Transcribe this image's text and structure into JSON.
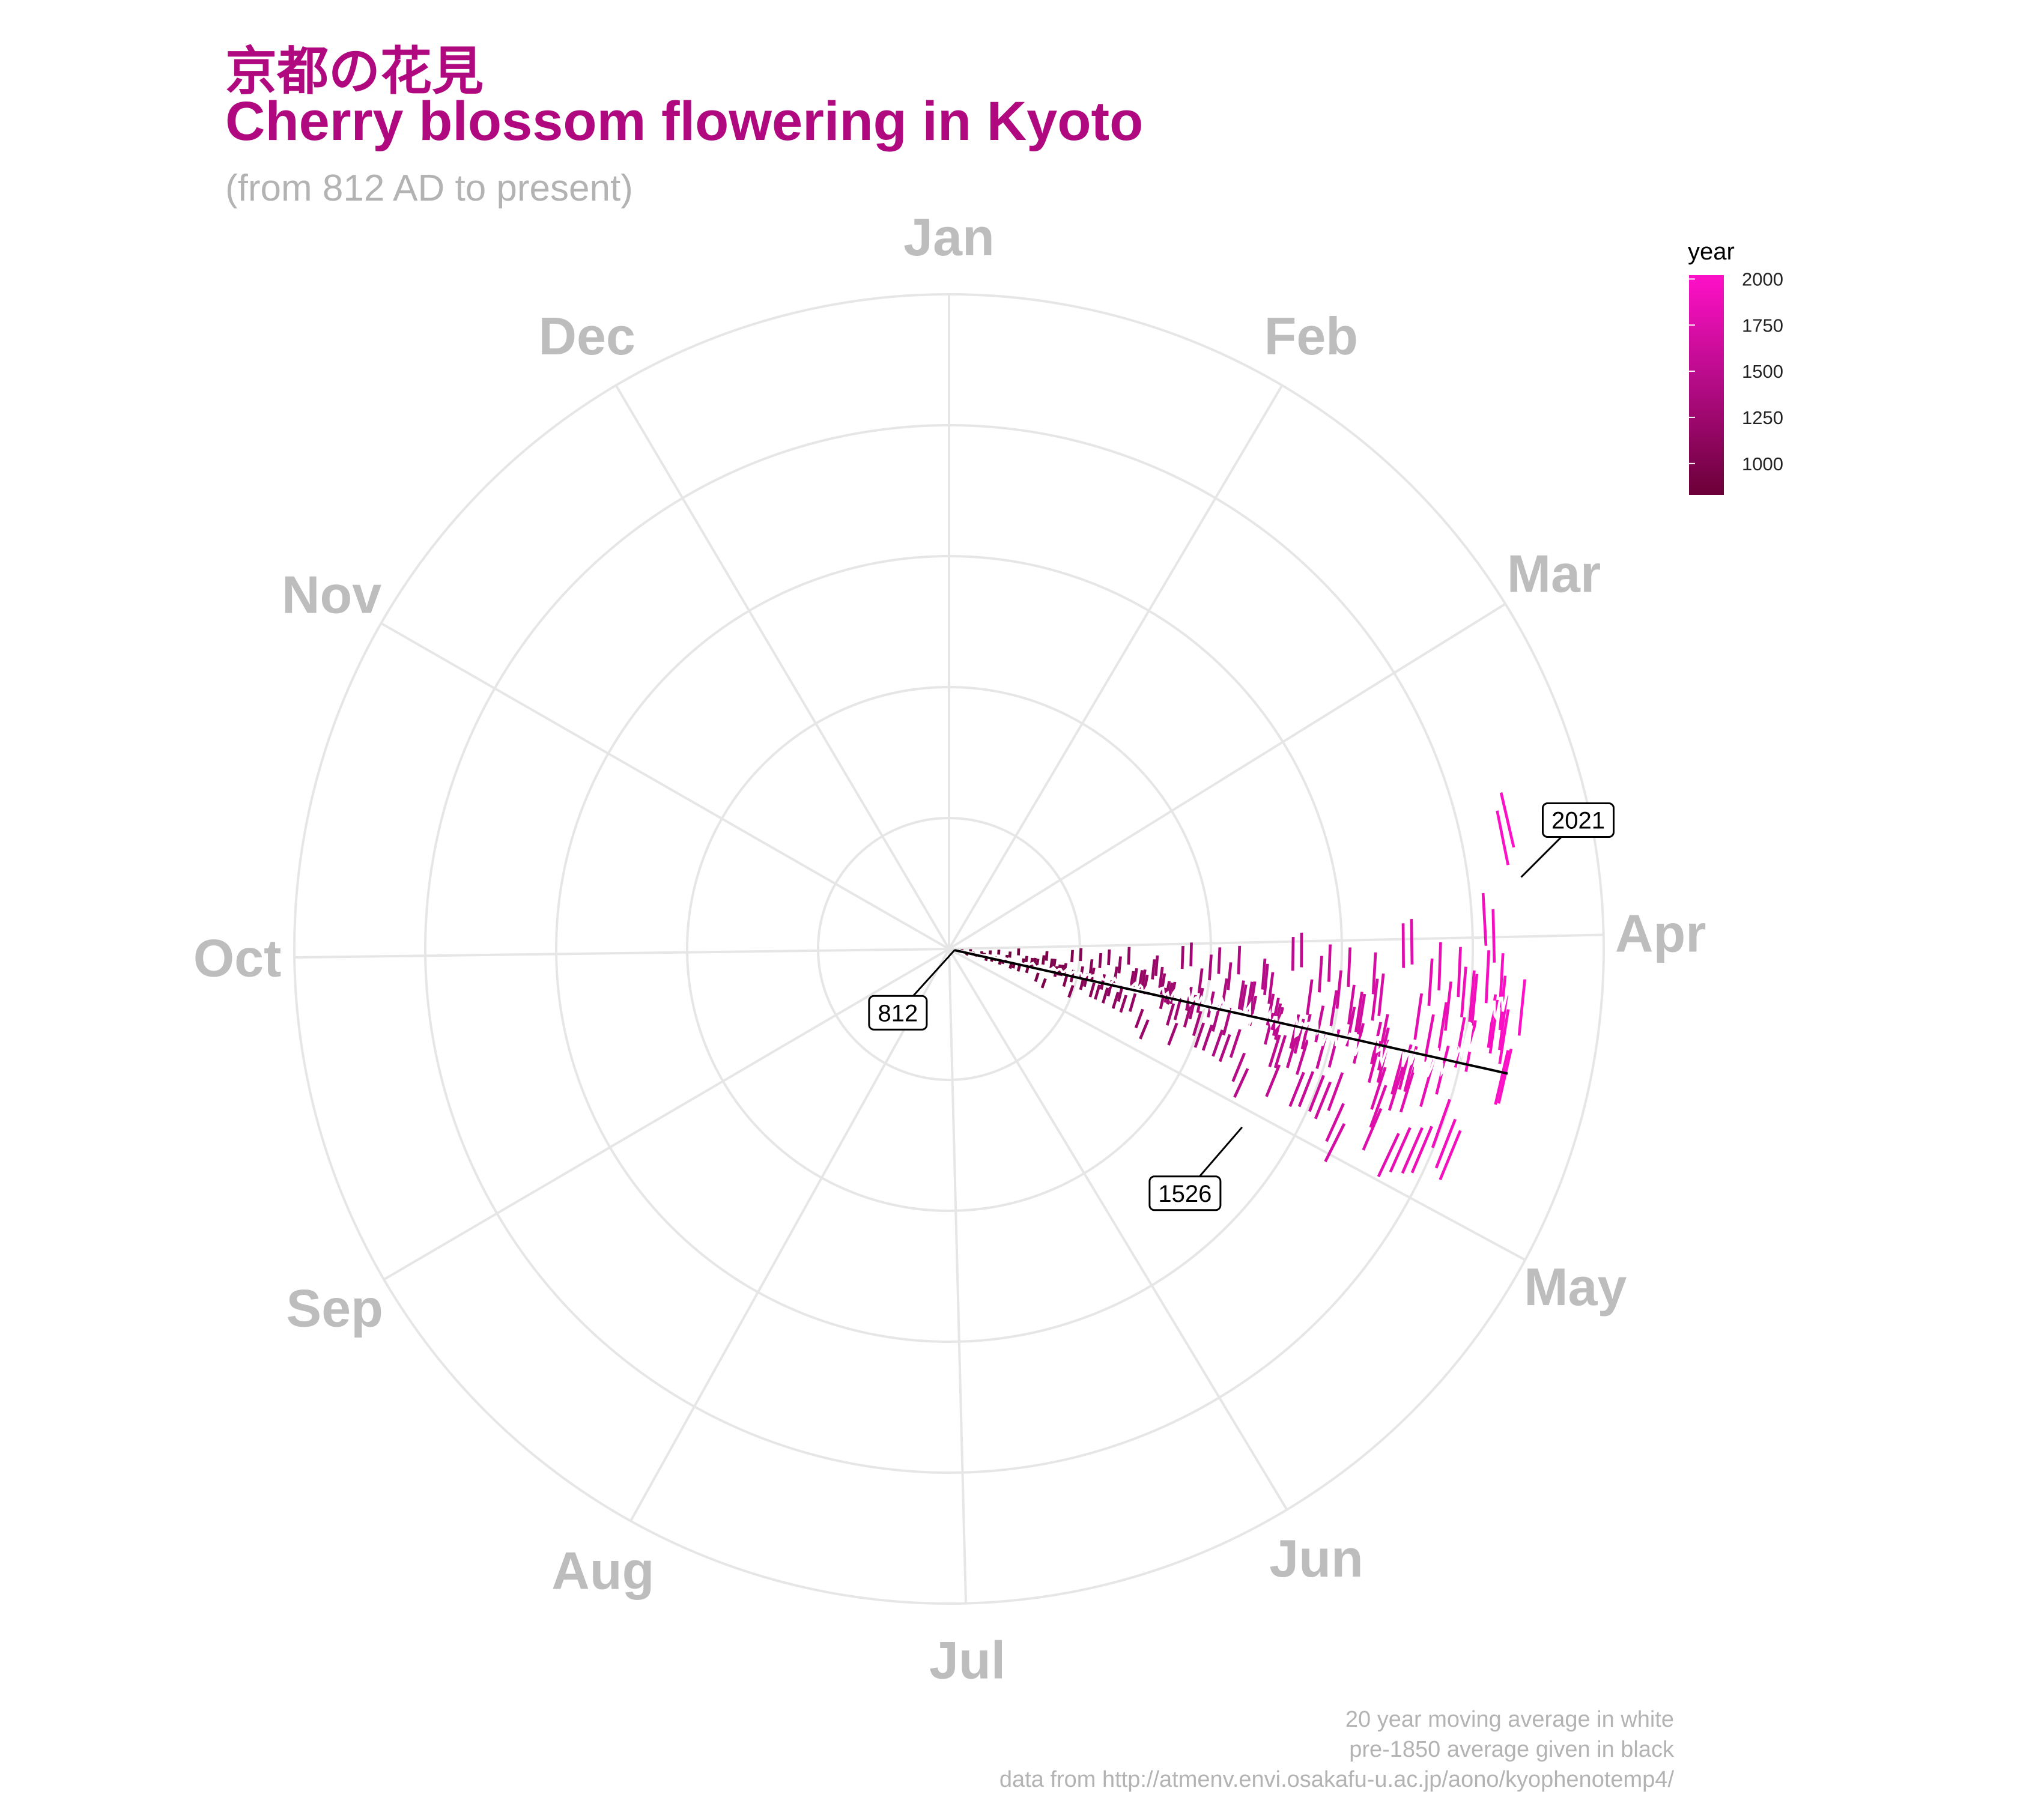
{
  "header": {
    "title_jp": "京都の花見",
    "title_en": "Cherry blossom flowering in Kyoto",
    "subtitle": "(from 812 AD to present)"
  },
  "caption": {
    "line1": "20 year moving average in white",
    "line2": "pre-1850 average given in black",
    "line3": "data from http://atmenv.envi.osakafu-u.ac.jp/aono/kyophenotemp4/"
  },
  "colors": {
    "low": "#6b0038",
    "mid": "#b30b85",
    "high": "#ff10c8",
    "grid": "#e6e6e6",
    "month_label": "#bdbdbd",
    "title": "#b0087f"
  },
  "chart_data": {
    "type": "polar-bar",
    "angle": "day of year (Jan at top, clockwise)",
    "radius": "year (812 at centre)",
    "months": [
      "Jan",
      "Feb",
      "Mar",
      "Apr",
      "May",
      "Jun",
      "Jul",
      "Aug",
      "Sep",
      "Oct",
      "Nov",
      "Dec"
    ],
    "year_range": [
      812,
      2021
    ],
    "legend": {
      "title": "year",
      "ticks": [
        "1000",
        "1250",
        "1500",
        "1750",
        "2000"
      ],
      "tick_values": [
        1000,
        1250,
        1500,
        1750,
        2000
      ]
    },
    "annotations": [
      {
        "label": "812",
        "year": 812,
        "day": 100
      },
      {
        "label": "1526",
        "year": 1526,
        "day": 124
      },
      {
        "label": "2021",
        "year": 2021,
        "day": 85
      }
    ],
    "pre1850_average_day": 105,
    "series": [
      {
        "year_start": 812,
        "year_end": 2021,
        "typical_day_range": [
          85,
          125
        ]
      }
    ]
  }
}
